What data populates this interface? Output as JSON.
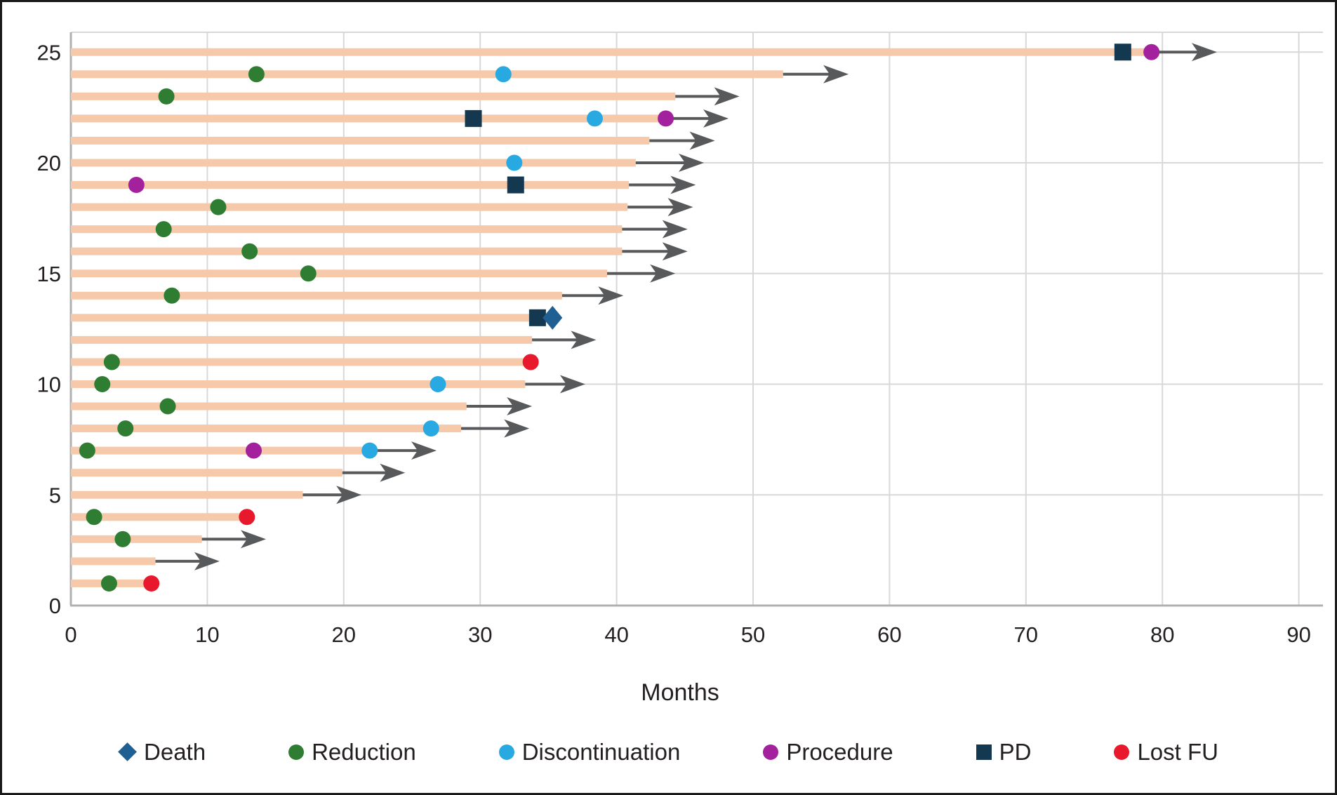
{
  "figure": {
    "xlabel": "Months",
    "background": "#ffffff",
    "border_color": "#1a1a1a",
    "text_color": "#231f20"
  },
  "axis": {
    "x_ticks": [
      0,
      10,
      20,
      30,
      40,
      50,
      60,
      70,
      80,
      90
    ],
    "y_ticks": [
      0,
      5,
      10,
      15,
      20,
      25
    ],
    "xlim": [
      0,
      92
    ],
    "ylim": [
      0,
      26
    ],
    "grid_color": "#d8d8d8",
    "axis_line_color": "#b0b0b0"
  },
  "markers": {
    "death": {
      "shape": "diamond",
      "color": "#1f5f92"
    },
    "reduction": {
      "shape": "circle",
      "color": "#2e7d32"
    },
    "discontinuation": {
      "shape": "circle",
      "color": "#29a9e1"
    },
    "procedure": {
      "shape": "circle",
      "color": "#a3219c"
    },
    "pd": {
      "shape": "square",
      "color": "#14384f"
    },
    "lost_fu": {
      "shape": "circle",
      "color": "#e8192c"
    }
  },
  "legend": [
    {
      "type": "death",
      "label": "Death"
    },
    {
      "type": "reduction",
      "label": "Reduction"
    },
    {
      "type": "discontinuation",
      "label": "Discontinuation"
    },
    {
      "type": "procedure",
      "label": "Procedure"
    },
    {
      "type": "pd",
      "label": "PD"
    },
    {
      "type": "lost_fu",
      "label": "Lost FU"
    }
  ],
  "chart_data": {
    "type": "swimmer",
    "bar_color": "#f6c9ab",
    "arrow_color": "#58595b",
    "title": "",
    "xlabel": "Months",
    "ylabel": "",
    "patients": [
      {
        "id": 1,
        "bar_end": 5.9,
        "ongoing": false,
        "arrow_end": null,
        "events": [
          {
            "type": "reduction",
            "month": 2.8
          },
          {
            "type": "lost_fu",
            "month": 5.9
          }
        ]
      },
      {
        "id": 2,
        "bar_end": 6.2,
        "ongoing": true,
        "arrow_end": 10.9,
        "events": []
      },
      {
        "id": 3,
        "bar_end": 9.6,
        "ongoing": true,
        "arrow_end": 14.3,
        "events": [
          {
            "type": "reduction",
            "month": 3.8
          }
        ]
      },
      {
        "id": 4,
        "bar_end": 12.9,
        "ongoing": false,
        "arrow_end": null,
        "events": [
          {
            "type": "reduction",
            "month": 1.7
          },
          {
            "type": "lost_fu",
            "month": 12.9
          }
        ]
      },
      {
        "id": 5,
        "bar_end": 17.0,
        "ongoing": true,
        "arrow_end": 21.3,
        "events": []
      },
      {
        "id": 6,
        "bar_end": 19.9,
        "ongoing": true,
        "arrow_end": 24.5,
        "events": []
      },
      {
        "id": 7,
        "bar_end": 21.9,
        "ongoing": true,
        "arrow_end": 26.8,
        "events": [
          {
            "type": "reduction",
            "month": 1.2
          },
          {
            "type": "procedure",
            "month": 13.4
          },
          {
            "type": "discontinuation",
            "month": 21.9
          }
        ]
      },
      {
        "id": 8,
        "bar_end": 28.6,
        "ongoing": true,
        "arrow_end": 33.6,
        "events": [
          {
            "type": "reduction",
            "month": 4.0
          },
          {
            "type": "discontinuation",
            "month": 26.4
          }
        ]
      },
      {
        "id": 9,
        "bar_end": 29.0,
        "ongoing": true,
        "arrow_end": 33.8,
        "events": [
          {
            "type": "reduction",
            "month": 7.1
          }
        ]
      },
      {
        "id": 10,
        "bar_end": 33.3,
        "ongoing": true,
        "arrow_end": 37.7,
        "events": [
          {
            "type": "reduction",
            "month": 2.3
          },
          {
            "type": "discontinuation",
            "month": 26.9
          }
        ]
      },
      {
        "id": 11,
        "bar_end": 33.7,
        "ongoing": false,
        "arrow_end": null,
        "events": [
          {
            "type": "reduction",
            "month": 3.0
          },
          {
            "type": "lost_fu",
            "month": 33.7
          }
        ]
      },
      {
        "id": 12,
        "bar_end": 33.8,
        "ongoing": true,
        "arrow_end": 38.5,
        "events": []
      },
      {
        "id": 13,
        "bar_end": 34.3,
        "ongoing": false,
        "arrow_end": null,
        "events": [
          {
            "type": "pd",
            "month": 34.2
          },
          {
            "type": "death",
            "month": 35.3
          }
        ]
      },
      {
        "id": 14,
        "bar_end": 36.0,
        "ongoing": true,
        "arrow_end": 40.5,
        "events": [
          {
            "type": "reduction",
            "month": 7.4
          }
        ]
      },
      {
        "id": 15,
        "bar_end": 39.3,
        "ongoing": true,
        "arrow_end": 44.3,
        "events": [
          {
            "type": "reduction",
            "month": 17.4
          }
        ]
      },
      {
        "id": 16,
        "bar_end": 40.4,
        "ongoing": true,
        "arrow_end": 45.2,
        "events": [
          {
            "type": "reduction",
            "month": 13.1
          }
        ]
      },
      {
        "id": 17,
        "bar_end": 40.4,
        "ongoing": true,
        "arrow_end": 45.2,
        "events": [
          {
            "type": "reduction",
            "month": 6.8
          }
        ]
      },
      {
        "id": 18,
        "bar_end": 40.8,
        "ongoing": true,
        "arrow_end": 45.6,
        "events": [
          {
            "type": "reduction",
            "month": 10.8
          }
        ]
      },
      {
        "id": 19,
        "bar_end": 40.9,
        "ongoing": true,
        "arrow_end": 45.8,
        "events": [
          {
            "type": "procedure",
            "month": 4.8
          },
          {
            "type": "pd",
            "month": 32.6
          }
        ]
      },
      {
        "id": 20,
        "bar_end": 41.4,
        "ongoing": true,
        "arrow_end": 46.4,
        "events": [
          {
            "type": "discontinuation",
            "month": 32.5
          }
        ]
      },
      {
        "id": 21,
        "bar_end": 42.4,
        "ongoing": true,
        "arrow_end": 47.2,
        "events": []
      },
      {
        "id": 22,
        "bar_end": 43.6,
        "ongoing": true,
        "arrow_end": 48.2,
        "events": [
          {
            "type": "pd",
            "month": 29.5
          },
          {
            "type": "discontinuation",
            "month": 38.4
          },
          {
            "type": "procedure",
            "month": 43.6
          }
        ]
      },
      {
        "id": 23,
        "bar_end": 44.3,
        "ongoing": true,
        "arrow_end": 49.0,
        "events": [
          {
            "type": "reduction",
            "month": 7.0
          }
        ]
      },
      {
        "id": 24,
        "bar_end": 52.2,
        "ongoing": true,
        "arrow_end": 57.0,
        "events": [
          {
            "type": "reduction",
            "month": 13.6
          },
          {
            "type": "discontinuation",
            "month": 31.7
          }
        ]
      },
      {
        "id": 25,
        "bar_end": 79.2,
        "ongoing": true,
        "arrow_end": 84.0,
        "events": [
          {
            "type": "pd",
            "month": 77.1
          },
          {
            "type": "procedure",
            "month": 79.2
          }
        ]
      }
    ]
  }
}
